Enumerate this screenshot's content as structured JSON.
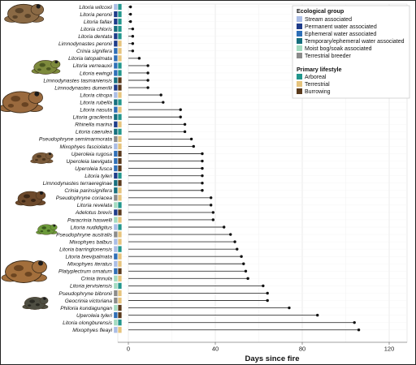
{
  "chart_data": {
    "type": "dot",
    "xlabel": "Days since fire",
    "xlim": [
      -4,
      126
    ],
    "xticks": [
      0,
      40,
      80,
      120
    ],
    "grid": true,
    "legend_position": "top-right",
    "legend": {
      "ecological_group": {
        "title": "Ecological group",
        "items": [
          {
            "key": "S",
            "label": "Stream associated",
            "color": "#aabde6"
          },
          {
            "key": "P",
            "label": "Permanent water associated",
            "color": "#1e3c8a"
          },
          {
            "key": "E",
            "label": "Ephemeral water associated",
            "color": "#2e6fb7"
          },
          {
            "key": "T",
            "label": "Temporary/ephemeral water associated",
            "color": "#166f7e"
          },
          {
            "key": "M",
            "label": "Moist bog/soak associated",
            "color": "#a3dbc0"
          },
          {
            "key": "B",
            "label": "Terrestrial breeder",
            "color": "#8c8c8c"
          }
        ]
      },
      "lifestyle": {
        "title": "Primary lifestyle",
        "items": [
          {
            "key": "A",
            "label": "Arboreal",
            "color": "#22968c"
          },
          {
            "key": "T",
            "label": "Terrestrial",
            "color": "#e6c47d"
          },
          {
            "key": "B",
            "label": "Burrowing",
            "color": "#5a3a1d"
          }
        ]
      }
    },
    "species": [
      {
        "name": "Litoria wilcoxii",
        "days": 1,
        "eco": "S",
        "life": "A"
      },
      {
        "name": "Litoria peronii",
        "days": 1,
        "eco": "P",
        "life": "A"
      },
      {
        "name": "Litoria fallax",
        "days": 1,
        "eco": "P",
        "life": "A"
      },
      {
        "name": "Litoria chloris",
        "days": 2,
        "eco": "T",
        "life": "A"
      },
      {
        "name": "Litoria dentata",
        "days": 2,
        "eco": "P",
        "life": "A"
      },
      {
        "name": "Limnodynastes peronii",
        "days": 2,
        "eco": "P",
        "life": "T"
      },
      {
        "name": "Crinia signifera",
        "days": 2,
        "eco": "E",
        "life": "T"
      },
      {
        "name": "Litoria latopalmata",
        "days": 5,
        "eco": "E",
        "life": "T"
      },
      {
        "name": "Litoria verreauxii",
        "days": 9,
        "eco": "E",
        "life": "A"
      },
      {
        "name": "Litoria ewingii",
        "days": 9,
        "eco": "E",
        "life": "A"
      },
      {
        "name": "Limnodynastes tasmaniensis",
        "days": 9,
        "eco": "T",
        "life": "B"
      },
      {
        "name": "Limnodynastes dumerilii",
        "days": 9,
        "eco": "P",
        "life": "B"
      },
      {
        "name": "Litoria citropa",
        "days": 15,
        "eco": "S",
        "life": "T"
      },
      {
        "name": "Litoria rubella",
        "days": 16,
        "eco": "T",
        "life": "A"
      },
      {
        "name": "Litoria nasuta",
        "days": 24,
        "eco": "E",
        "life": "T"
      },
      {
        "name": "Litoria gracilenta",
        "days": 24,
        "eco": "T",
        "life": "A"
      },
      {
        "name": "Rhinella marina",
        "days": 26,
        "eco": "P",
        "life": "T"
      },
      {
        "name": "Litoria caerulea",
        "days": 26,
        "eco": "T",
        "life": "A"
      },
      {
        "name": "Pseudophryne semimarmorata",
        "days": 29,
        "eco": "B",
        "life": "T"
      },
      {
        "name": "Mixophyes fasciolatus",
        "days": 30,
        "eco": "S",
        "life": "T"
      },
      {
        "name": "Uperoleia rugosa",
        "days": 34,
        "eco": "E",
        "life": "B"
      },
      {
        "name": "Uperoleia laevigata",
        "days": 34,
        "eco": "E",
        "life": "B"
      },
      {
        "name": "Uperoleia fusca",
        "days": 34,
        "eco": "E",
        "life": "B"
      },
      {
        "name": "Litoria tyleri",
        "days": 34,
        "eco": "P",
        "life": "A"
      },
      {
        "name": "Limnodynastes terraereginae",
        "days": 34,
        "eco": "T",
        "life": "B"
      },
      {
        "name": "Crinia parinsignifera",
        "days": 34,
        "eco": "T",
        "life": "T"
      },
      {
        "name": "Pseudophryne coriacea",
        "days": 38,
        "eco": "B",
        "life": "T"
      },
      {
        "name": "Litoria revelata",
        "days": 38,
        "eco": "M",
        "life": "A"
      },
      {
        "name": "Adelotus brevis",
        "days": 39,
        "eco": "P",
        "life": "B"
      },
      {
        "name": "Paracrinia haswelli",
        "days": 39,
        "eco": "M",
        "life": "T"
      },
      {
        "name": "Litoria nudidigitus",
        "days": 44,
        "eco": "S",
        "life": "A"
      },
      {
        "name": "Pseudophryne australis",
        "days": 47,
        "eco": "B",
        "life": "T"
      },
      {
        "name": "Mixophyes balbus",
        "days": 49,
        "eco": "S",
        "life": "T"
      },
      {
        "name": "Litoria barringtonensis",
        "days": 50,
        "eco": "S",
        "life": "A"
      },
      {
        "name": "Litoria brevipalmata",
        "days": 52,
        "eco": "E",
        "life": "T"
      },
      {
        "name": "Mixophyes iteratus",
        "days": 53,
        "eco": "S",
        "life": "T"
      },
      {
        "name": "Platyplectrum ornatum",
        "days": 54,
        "eco": "E",
        "life": "B"
      },
      {
        "name": "Crinia tinnula",
        "days": 55,
        "eco": "M",
        "life": "T"
      },
      {
        "name": "Litoria jervisiensis",
        "days": 62,
        "eco": "M",
        "life": "A"
      },
      {
        "name": "Pseudophryne bibronii",
        "days": 64,
        "eco": "B",
        "life": "T"
      },
      {
        "name": "Geocrinia victoriana",
        "days": 64,
        "eco": "B",
        "life": "T"
      },
      {
        "name": "Philoria kundagungan",
        "days": 74,
        "eco": "M",
        "life": "B"
      },
      {
        "name": "Uperoleia tyleri",
        "days": 87,
        "eco": "E",
        "life": "B"
      },
      {
        "name": "Litoria olongburensis",
        "days": 104,
        "eco": "M",
        "life": "A"
      },
      {
        "name": "Mixophyes fleayi",
        "days": 106,
        "eco": "S",
        "life": "T"
      }
    ]
  }
}
